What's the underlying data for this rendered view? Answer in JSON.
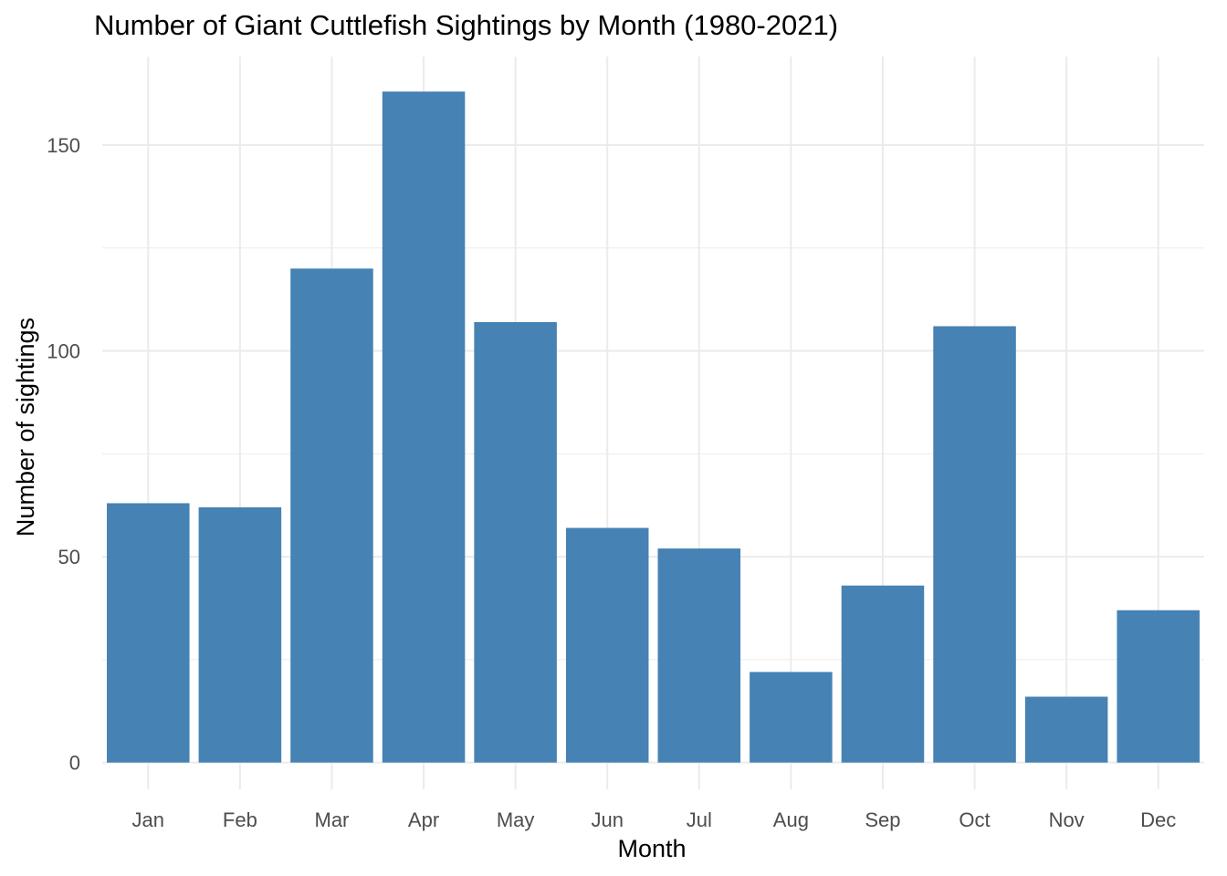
{
  "chart_data": {
    "type": "bar",
    "title": "Number of Giant Cuttlefish Sightings by Month (1980-2021)",
    "xlabel": "Month",
    "ylabel": "Number of sightings",
    "categories": [
      "Jan",
      "Feb",
      "Mar",
      "Apr",
      "May",
      "Jun",
      "Jul",
      "Aug",
      "Sep",
      "Oct",
      "Nov",
      "Dec"
    ],
    "values": [
      63,
      62,
      120,
      163,
      107,
      57,
      52,
      22,
      43,
      106,
      16,
      37
    ],
    "yticks": [
      0,
      50,
      100,
      150
    ],
    "ytick_labels": [
      "0",
      "50",
      "100",
      "150"
    ],
    "ylim": [
      -6.5,
      171.5
    ],
    "grid": true,
    "bar_color": "#4682B4",
    "grid_color": "#ebebeb"
  }
}
